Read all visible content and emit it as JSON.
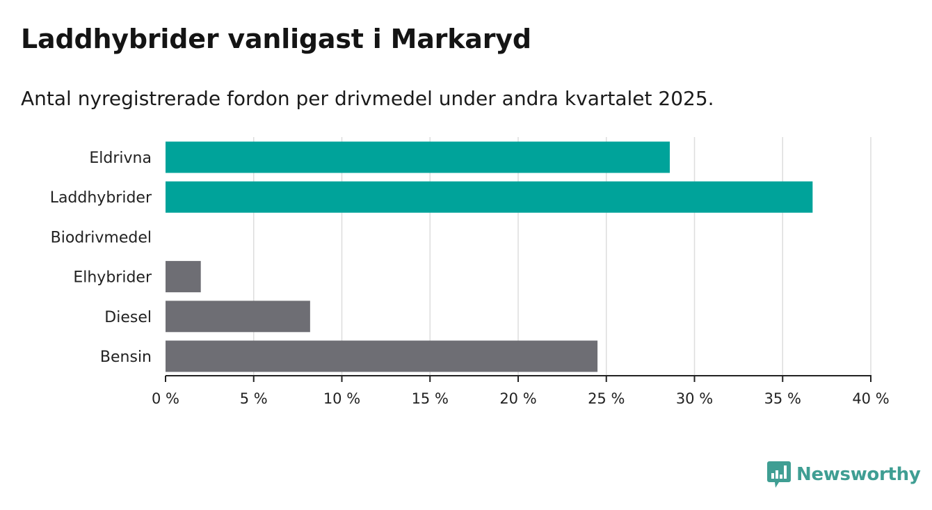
{
  "title": "Laddhybrider vanligast i Markaryd",
  "subtitle": "Antal nyregistrerade fordon per drivmedel under andra kvartalet 2025.",
  "brand": {
    "name": "Newsworthy",
    "color": "#3f9e93",
    "icon": "bar-chart-speech-bubble-icon"
  },
  "colors": {
    "highlight": "#00a39a",
    "default": "#6e6e74",
    "grid": "#dddddd",
    "axis": "#222222"
  },
  "chart_data": {
    "type": "bar",
    "orientation": "horizontal",
    "categories": [
      "Eldrivna",
      "Laddhybrider",
      "Biodrivmedel",
      "Elhybrider",
      "Diesel",
      "Bensin"
    ],
    "values": [
      28.6,
      36.7,
      0,
      2.0,
      8.2,
      24.5
    ],
    "highlighted": [
      true,
      true,
      false,
      false,
      false,
      false
    ],
    "unit": "%",
    "xlim": [
      0,
      40
    ],
    "xticks": [
      0,
      5,
      10,
      15,
      20,
      25,
      30,
      35,
      40
    ],
    "xtick_labels": [
      "0 %",
      "5 %",
      "10 %",
      "15 %",
      "20 %",
      "25 %",
      "30 %",
      "35 %",
      "40 %"
    ],
    "grid": true,
    "legend": "none"
  }
}
